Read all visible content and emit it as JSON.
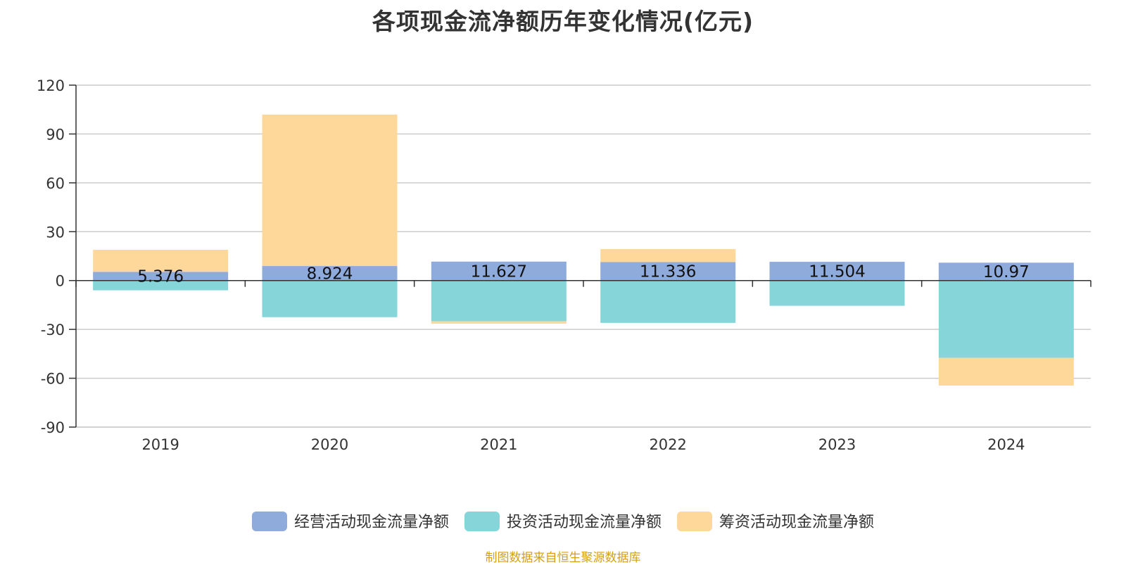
{
  "chart_data": {
    "type": "bar",
    "stacked": true,
    "title": "各项现金流净额历年变化情况(亿元)",
    "categories": [
      "2019",
      "2020",
      "2021",
      "2022",
      "2023",
      "2024"
    ],
    "ylim": [
      -90,
      120
    ],
    "yticks": [
      120,
      90,
      60,
      30,
      0,
      -30,
      -60,
      -90
    ],
    "ytick_labels": [
      "120",
      "90",
      "60",
      "30",
      "0",
      "-30",
      "-60",
      "-90"
    ],
    "grid": true,
    "legend_position": "bottom-center",
    "series": [
      {
        "name": "经营活动现金流量净额",
        "color": "#8eabdc",
        "values": [
          5.376,
          8.924,
          11.627,
          11.336,
          11.504,
          10.97
        ],
        "labels": [
          "5.376",
          "8.924",
          "11.627",
          "11.336",
          "11.504",
          "10.97"
        ]
      },
      {
        "name": "投资活动现金流量净额",
        "color": "#86d5d8",
        "values": [
          -6,
          -22.5,
          -25,
          -26,
          -15.5,
          -47.5
        ]
      },
      {
        "name": "筹资活动现金流量净额",
        "color": "#fed89b",
        "values": [
          13.5,
          93,
          -1.5,
          8,
          0,
          -17
        ]
      }
    ]
  },
  "source_note": "制图数据来自恒生聚源数据库"
}
